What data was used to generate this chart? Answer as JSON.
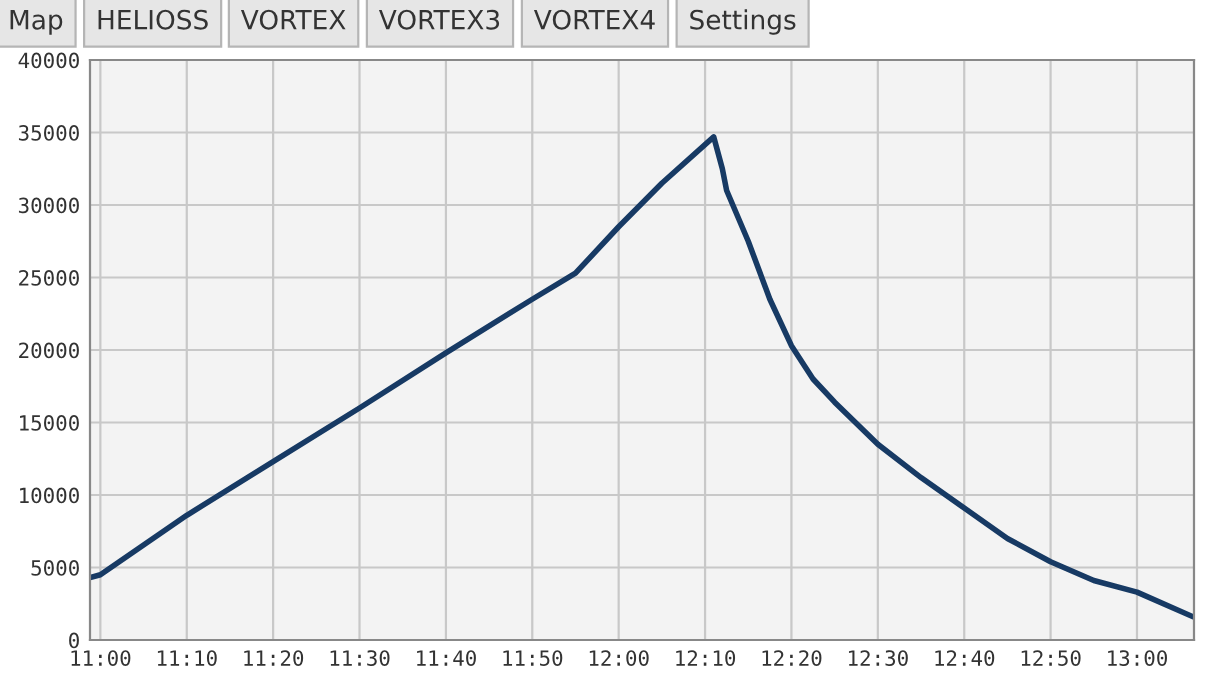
{
  "chart_data": {
    "type": "line",
    "annotations": [
      "Map",
      "HELIOSS",
      "VORTEX",
      "VORTEX3",
      "VORTEX4",
      "Settings"
    ],
    "x": [
      10.98,
      11.0,
      11.1667,
      11.3333,
      11.5,
      11.6667,
      11.8333,
      11.9167,
      12.0,
      12.0833,
      12.1833,
      12.2,
      12.2083,
      12.25,
      12.2917,
      12.3333,
      12.375,
      12.4167,
      12.5,
      12.5833,
      12.6667,
      12.75,
      12.8333,
      12.9167,
      13.0,
      13.1083
    ],
    "series": [
      {
        "color": "#173a64",
        "values": [
          4300,
          4500,
          8600,
          12300,
          16000,
          19800,
          23500,
          25300,
          28500,
          31500,
          34700,
          32500,
          31000,
          27500,
          23500,
          20300,
          18000,
          16400,
          13500,
          11200,
          9100,
          7000,
          5400,
          4100,
          3300,
          1600
        ]
      }
    ],
    "xlim": [
      10.98,
      13.11
    ],
    "xticks": [
      {
        "value": 11.0,
        "label": "11:00"
      },
      {
        "value": 11.1667,
        "label": "11:10"
      },
      {
        "value": 11.3333,
        "label": "11:20"
      },
      {
        "value": 11.5,
        "label": "11:30"
      },
      {
        "value": 11.6667,
        "label": "11:40"
      },
      {
        "value": 11.8333,
        "label": "11:50"
      },
      {
        "value": 12.0,
        "label": "12:00"
      },
      {
        "value": 12.1667,
        "label": "12:10"
      },
      {
        "value": 12.3333,
        "label": "12:20"
      },
      {
        "value": 12.5,
        "label": "12:30"
      },
      {
        "value": 12.6667,
        "label": "12:40"
      },
      {
        "value": 12.8333,
        "label": "12:50"
      },
      {
        "value": 13.0,
        "label": "13:00"
      }
    ],
    "ylim": [
      0,
      40000
    ],
    "yticks": [
      0,
      5000,
      10000,
      15000,
      20000,
      25000,
      30000,
      35000,
      40000
    ],
    "grid": true,
    "marker": "none",
    "line_style": "solid"
  }
}
